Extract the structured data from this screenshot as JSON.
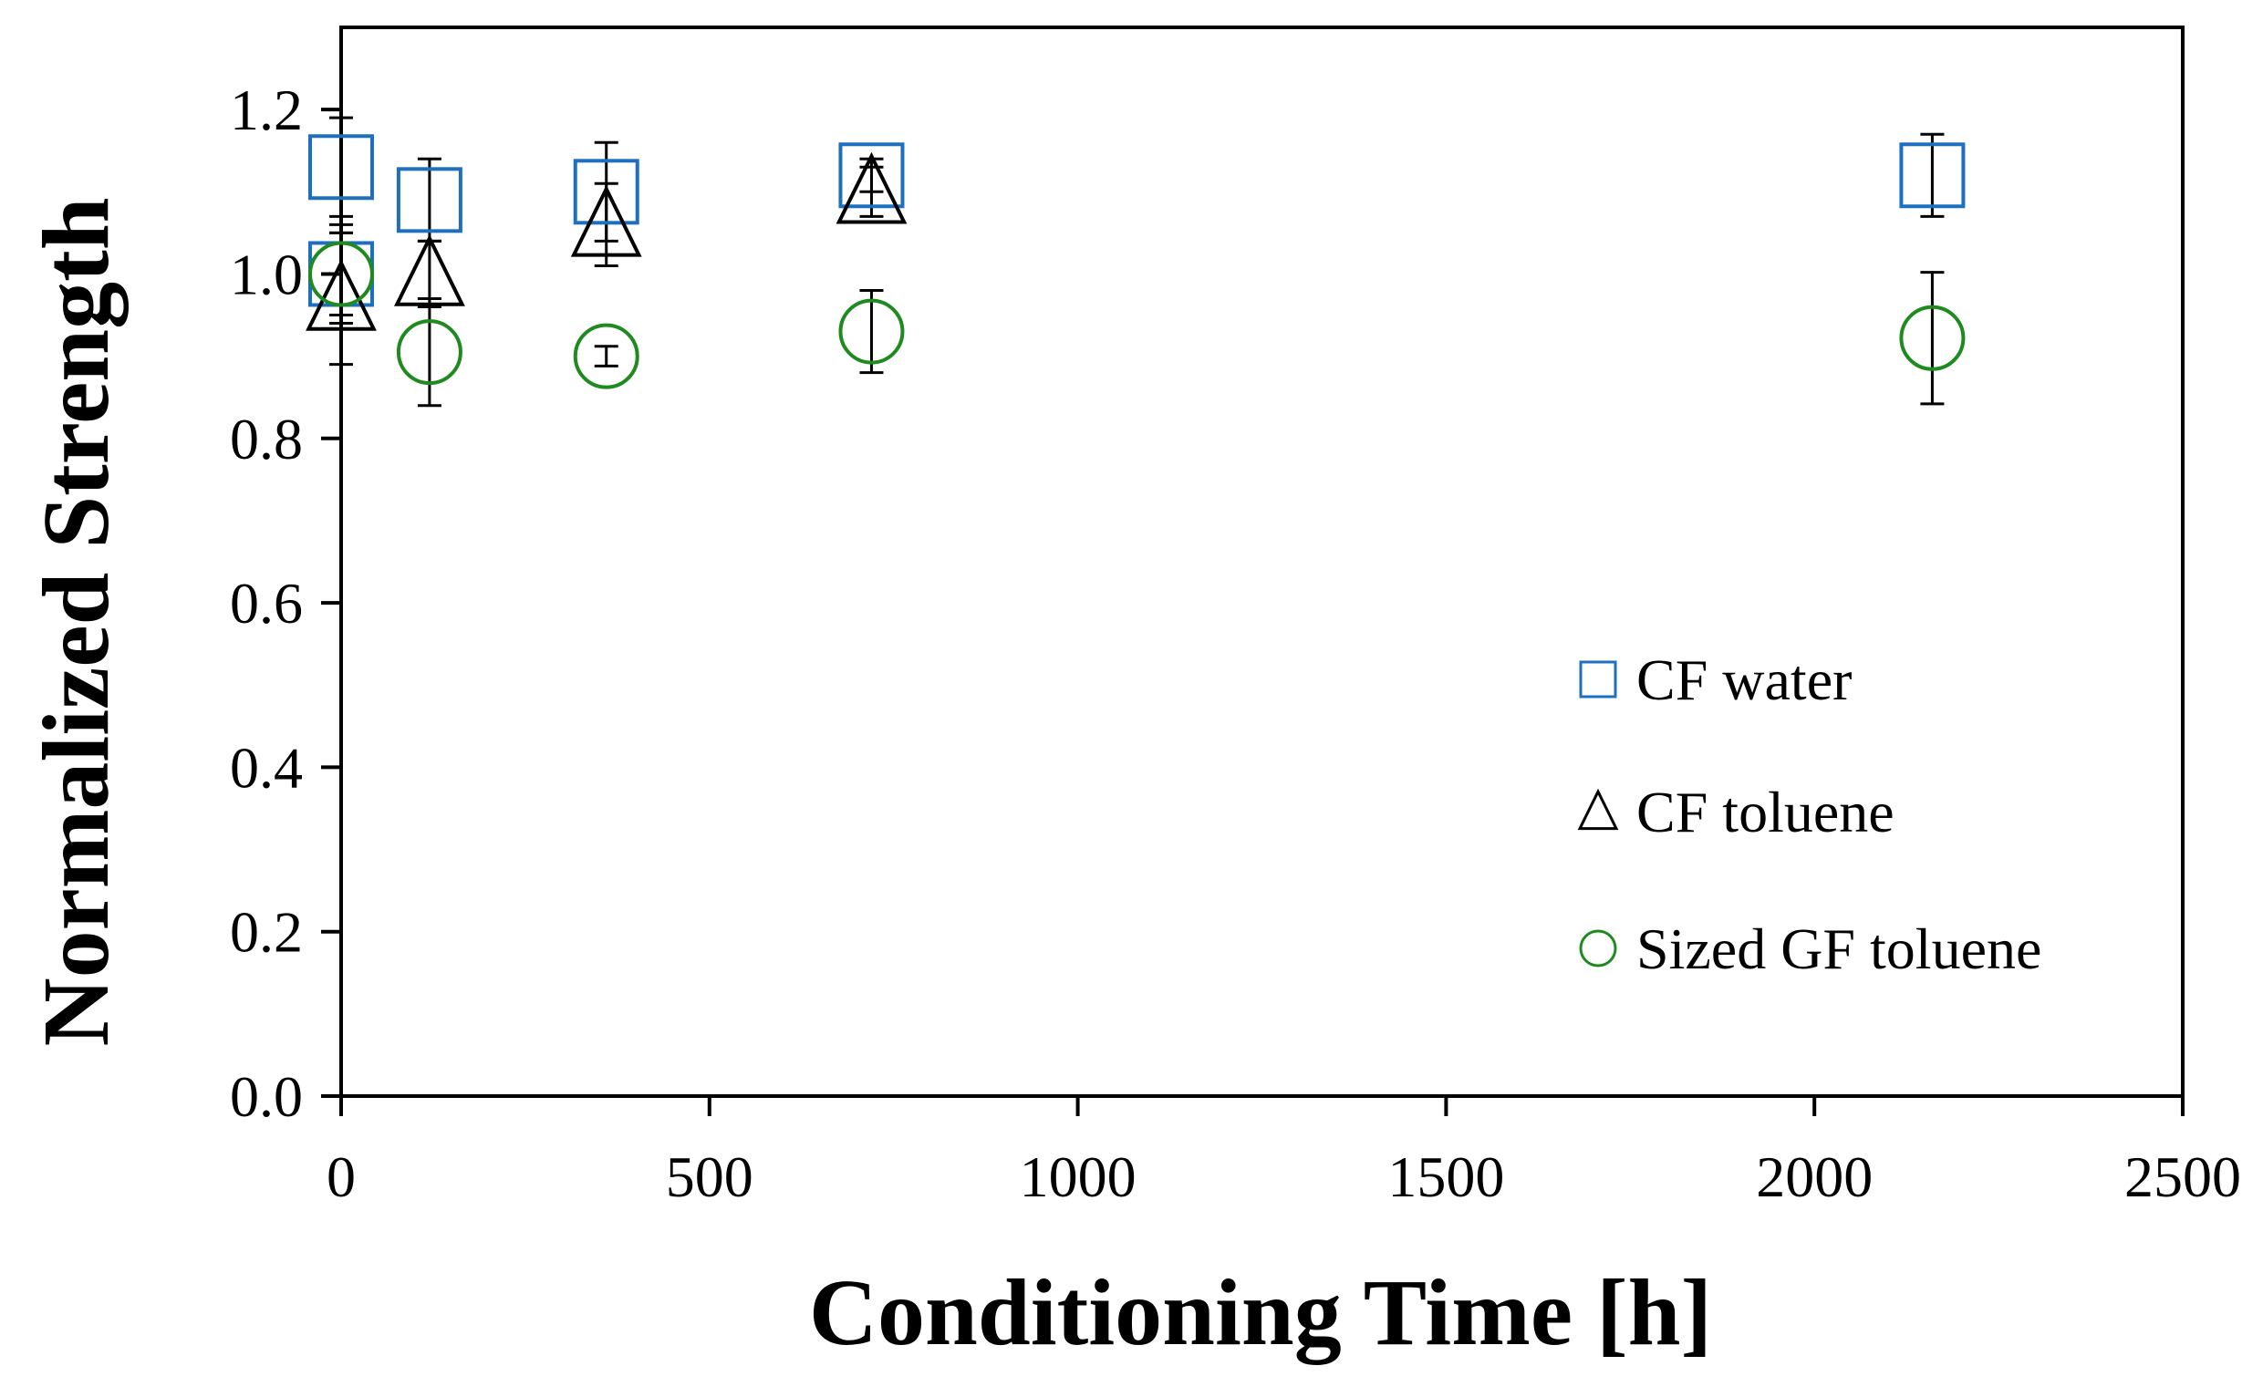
{
  "chart_data": {
    "type": "scatter",
    "title": "",
    "xlabel": "Conditioning Time [h]",
    "ylabel": "Normalized Strength",
    "xlim": [
      0,
      2500
    ],
    "ylim": [
      0.0,
      1.3
    ],
    "xticks": [
      0,
      500,
      1000,
      1500,
      2000,
      2500
    ],
    "xtick_labels": [
      "0",
      "500",
      "1000",
      "1500",
      "2000",
      "2500"
    ],
    "yticks": [
      0.0,
      0.2,
      0.4,
      0.6,
      0.8,
      1.0,
      1.2
    ],
    "ytick_labels": [
      "0.0",
      "0.2",
      "0.4",
      "0.6",
      "0.8",
      "1.0",
      "1.2"
    ],
    "grid": false,
    "legend_position": "right",
    "series": [
      {
        "name": "CF water",
        "marker": "square",
        "color": "#1f6fbf",
        "points": [
          {
            "x": 0,
            "y": 1.0,
            "err": 0.06
          },
          {
            "x": 0,
            "y": 1.13,
            "err": 0.06
          },
          {
            "x": 120,
            "y": 1.09,
            "err": 0.05
          },
          {
            "x": 360,
            "y": 1.1,
            "err": 0.06
          },
          {
            "x": 720,
            "y": 1.12,
            "err": 0.02
          },
          {
            "x": 2160,
            "y": 1.12,
            "err": 0.05
          }
        ]
      },
      {
        "name": "CF toluene",
        "marker": "triangle",
        "color": "#000000",
        "points": [
          {
            "x": 0,
            "y": 0.97,
            "err": 0.08
          },
          {
            "x": 120,
            "y": 1.0,
            "err": 0.04
          },
          {
            "x": 360,
            "y": 1.06,
            "err": 0.05
          },
          {
            "x": 720,
            "y": 1.1,
            "err": 0.03
          }
        ]
      },
      {
        "name": "Sized GF toluene",
        "marker": "circle",
        "color": "#1f8a1f",
        "points": [
          {
            "x": 0,
            "y": 1.0,
            "err": 0.05
          },
          {
            "x": 120,
            "y": 0.905,
            "err": 0.065
          },
          {
            "x": 360,
            "y": 0.9,
            "err": 0.012
          },
          {
            "x": 720,
            "y": 0.93,
            "err": 0.05
          },
          {
            "x": 2160,
            "y": 0.922,
            "err": 0.08
          }
        ]
      }
    ]
  }
}
